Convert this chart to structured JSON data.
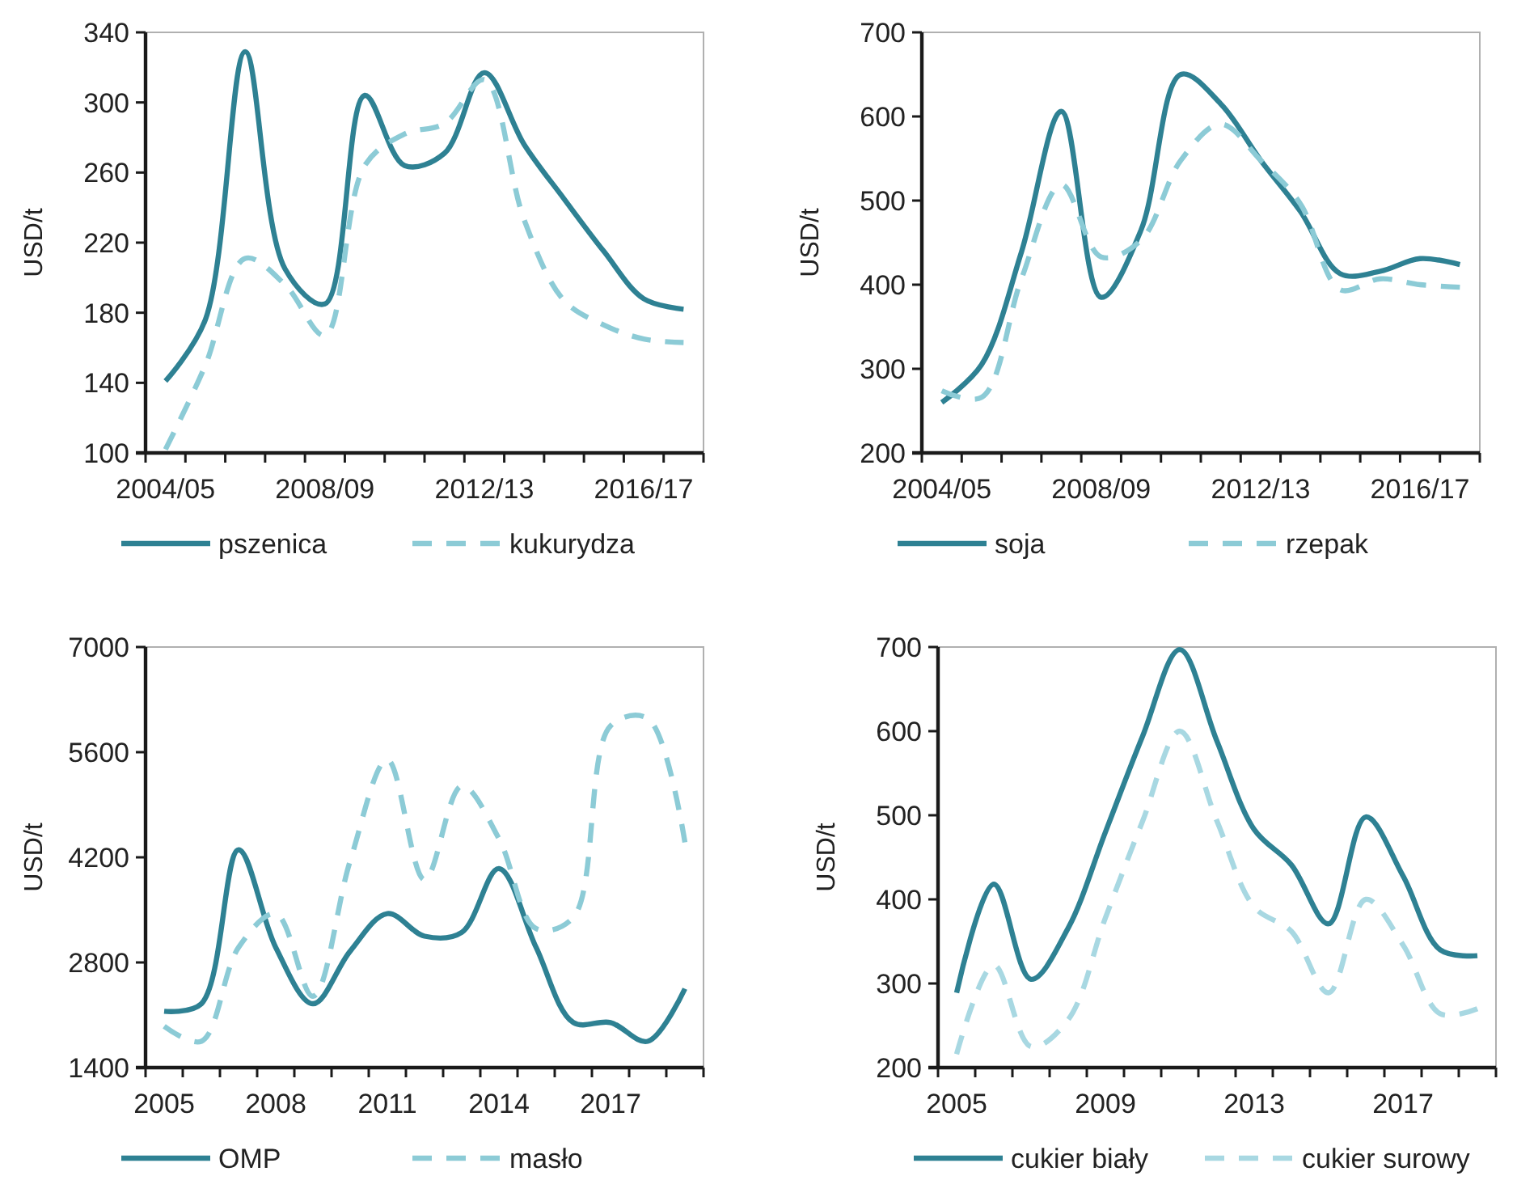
{
  "chart_data": [
    {
      "type": "line",
      "ylabel": "USD/t",
      "categories": [
        "2004/05",
        null,
        null,
        null,
        "2008/09",
        null,
        null,
        null,
        "2012/13",
        null,
        null,
        null,
        "2016/17",
        null
      ],
      "ylim": [
        100,
        340
      ],
      "yticks": [
        100,
        140,
        180,
        220,
        260,
        300,
        340
      ],
      "legend": "bottom",
      "series": [
        {
          "name": "pszenica",
          "color": "#2e8193",
          "line_style": "solid",
          "values": [
            141,
            176,
            329,
            205,
            185,
            304,
            264,
            271,
            317,
            276,
            245,
            215,
            188,
            182
          ]
        },
        {
          "name": "kukurydza",
          "color": "#8ccbd6",
          "line_style": "dashed",
          "values": [
            102,
            150,
            211,
            196,
            167,
            264,
            282,
            288,
            313,
            233,
            187,
            173,
            165,
            163
          ]
        }
      ]
    },
    {
      "type": "line",
      "ylabel": "USD/t",
      "categories": [
        "2004/05",
        null,
        null,
        null,
        "2008/09",
        null,
        null,
        null,
        "2012/13",
        null,
        null,
        null,
        "2016/17",
        null
      ],
      "ylim": [
        200,
        700
      ],
      "yticks": [
        200,
        300,
        400,
        500,
        600,
        700
      ],
      "legend": "bottom",
      "series": [
        {
          "name": "soja",
          "color": "#2e8193",
          "line_style": "solid",
          "values": [
            260,
            305,
            439,
            606,
            385,
            465,
            650,
            615,
            548,
            487,
            413,
            416,
            431,
            424
          ]
        },
        {
          "name": "rzepak",
          "color": "#8ccbd6",
          "line_style": "dashed",
          "values": [
            274,
            266,
            407,
            519,
            433,
            453,
            548,
            591,
            548,
            496,
            394,
            407,
            400,
            397
          ]
        }
      ]
    },
    {
      "type": "line",
      "ylabel": "USD/t",
      "categories": [
        "2005",
        null,
        null,
        "2008",
        null,
        null,
        "2011",
        null,
        null,
        "2014",
        null,
        null,
        "2017",
        null,
        null
      ],
      "ylim": [
        1400,
        7000
      ],
      "yticks": [
        1400,
        2800,
        4200,
        5600,
        7000
      ],
      "legend": "bottom",
      "series": [
        {
          "name": "OMP",
          "color": "#2e8193",
          "line_style": "solid",
          "values": [
            2150,
            2250,
            4300,
            3000,
            2250,
            2950,
            3450,
            3150,
            3200,
            4050,
            3000,
            2000,
            2000,
            1750,
            2450
          ]
        },
        {
          "name": "masło",
          "color": "#8ccbd6",
          "line_style": "dashed",
          "values": [
            1950,
            1750,
            3000,
            3450,
            2350,
            4150,
            5500,
            3900,
            5150,
            4450,
            3250,
            3400,
            5950,
            6050,
            4400
          ]
        }
      ]
    },
    {
      "type": "line",
      "ylabel": "USD/t",
      "categories": [
        "2005",
        null,
        null,
        null,
        "2009",
        null,
        null,
        null,
        "2013",
        null,
        null,
        null,
        "2017",
        null,
        null
      ],
      "ylim": [
        200,
        700
      ],
      "yticks": [
        200,
        300,
        400,
        500,
        600,
        700
      ],
      "legend": "bottom",
      "series": [
        {
          "name": "cukier biały",
          "color": "#2e8193",
          "line_style": "solid",
          "values": [
            289,
            418,
            305,
            366,
            480,
            594,
            697,
            588,
            483,
            441,
            371,
            498,
            428,
            340,
            333
          ]
        },
        {
          "name": "cukier surowy",
          "color": "#a8d8e2",
          "line_style": "dashed",
          "values": [
            216,
            322,
            225,
            257,
            378,
            493,
            600,
            493,
            391,
            362,
            289,
            400,
            346,
            264,
            270
          ]
        }
      ]
    }
  ]
}
